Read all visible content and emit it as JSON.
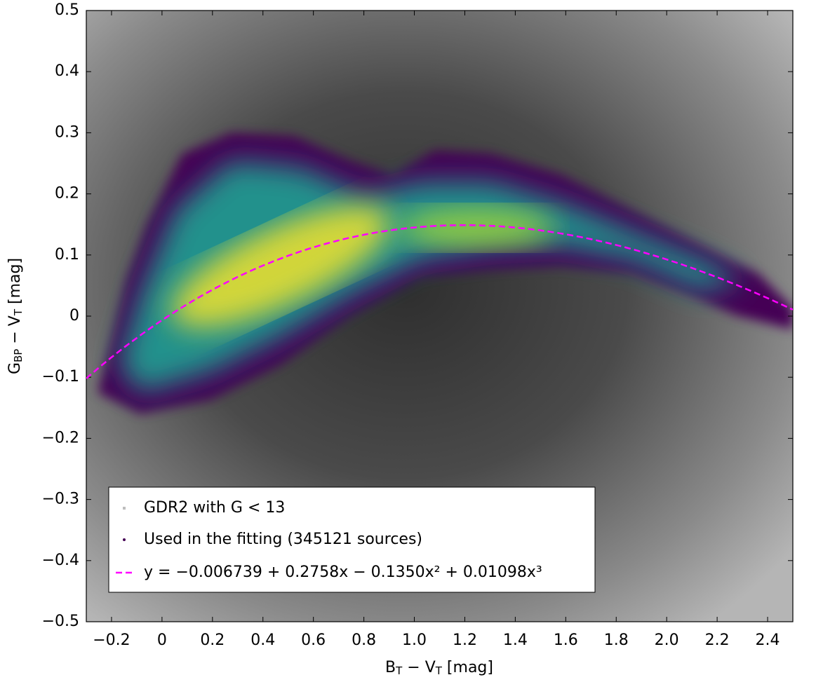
{
  "chart_data": {
    "type": "scatter",
    "x_label": [
      {
        "text": "B"
      },
      {
        "text": "T",
        "sub": true
      },
      {
        "text": " − V"
      },
      {
        "text": "T",
        "sub": true
      },
      {
        "text": " [mag]"
      }
    ],
    "y_label": [
      {
        "text": "G"
      },
      {
        "text": "BP",
        "sub": true
      },
      {
        "text": " − V"
      },
      {
        "text": "T",
        "sub": true
      },
      {
        "text": " [mag]"
      }
    ],
    "xlim": [
      -0.3,
      2.5
    ],
    "ylim": [
      -0.5,
      0.5
    ],
    "xticks": [
      {
        "value": -0.2,
        "label": "−0.2"
      },
      0,
      0.2,
      0.4,
      0.6,
      0.8,
      {
        "value": 1.0,
        "label": "1.0"
      },
      1.2,
      1.4,
      1.6,
      1.8,
      {
        "value": 2.0,
        "label": "2.0"
      },
      2.2,
      2.4
    ],
    "yticks": [
      {
        "value": -0.5,
        "label": "−0.5"
      },
      {
        "value": -0.4,
        "label": "−0.4"
      },
      {
        "value": -0.3,
        "label": "−0.3"
      },
      {
        "value": -0.2,
        "label": "−0.2"
      },
      {
        "value": -0.1,
        "label": "−0.1"
      },
      0,
      0.1,
      0.2,
      0.3,
      0.4,
      0.5
    ],
    "series": [
      {
        "name": "GDR2 with G < 13",
        "color": "#bdbdbd"
      },
      {
        "name": "Used in the fitting (345121 sources)",
        "color": "#440154"
      }
    ],
    "fit": {
      "name": "y = −0.006739 + 0.2758x − 0.1350x² + 0.01098x³",
      "color": "#ff00ff",
      "coefficients": [
        -0.006739,
        0.2758,
        -0.135,
        0.01098
      ]
    },
    "legend": "lower left",
    "grid": false
  }
}
